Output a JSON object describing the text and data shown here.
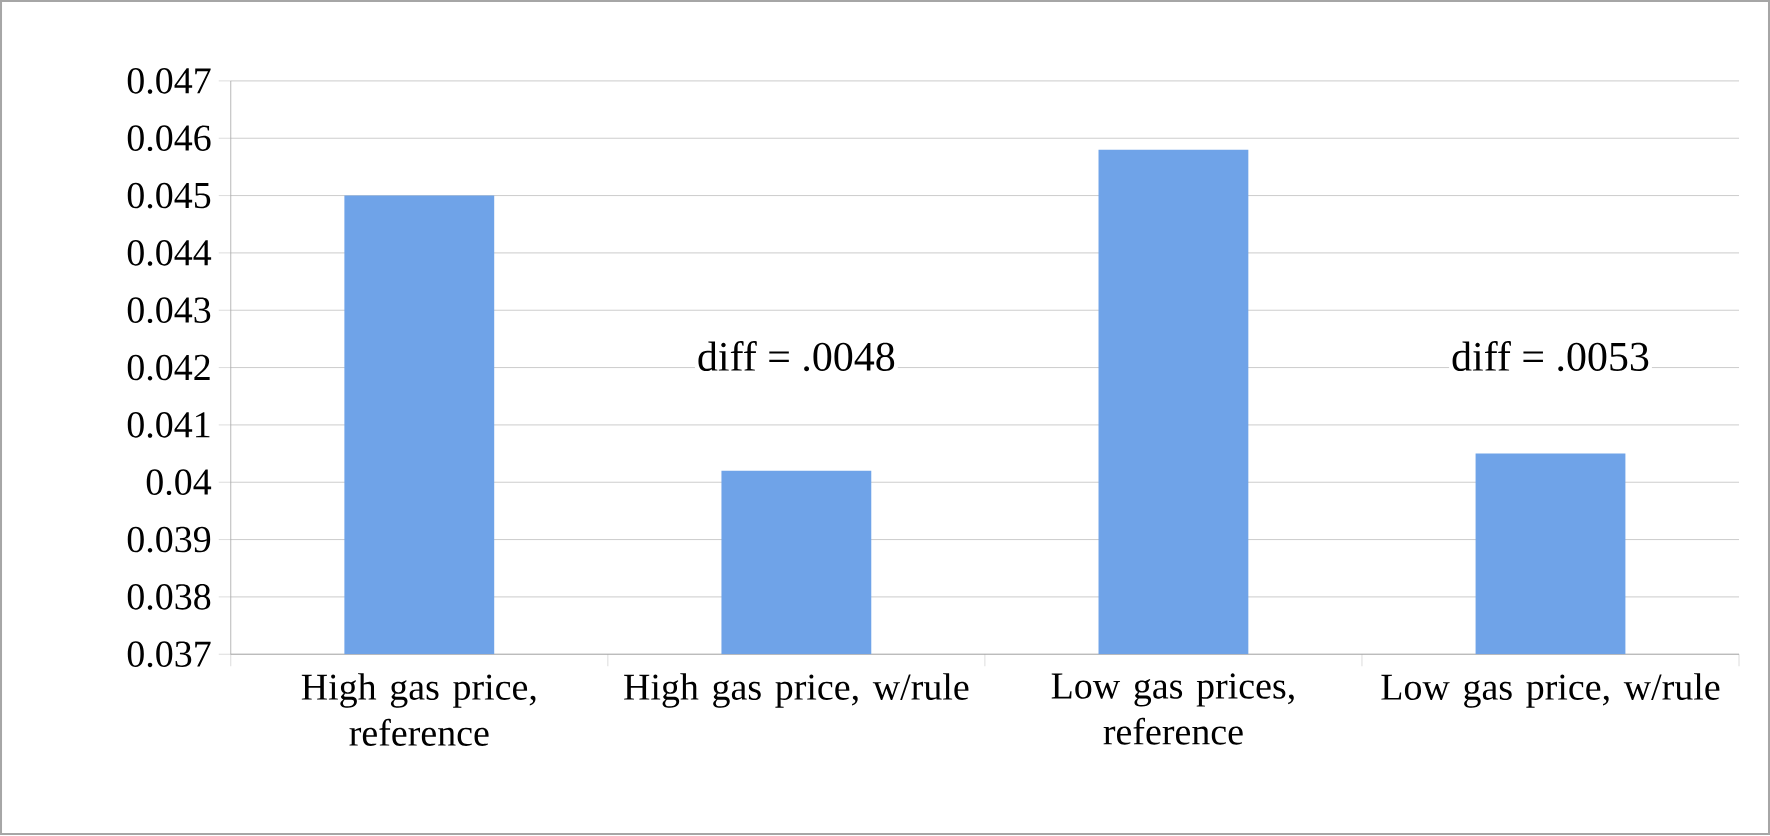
{
  "chart_data": {
    "type": "bar",
    "categories": [
      "High gas price, reference",
      "High gas price, w/rule",
      "Low gas prices, reference",
      "Low gas price, w/rule"
    ],
    "values": [
      0.045,
      0.0402,
      0.0458,
      0.0405
    ],
    "color": "#6fa3e8",
    "ylim": [
      0.037,
      0.047
    ],
    "yticks": [
      0.037,
      0.038,
      0.039,
      0.04,
      0.041,
      0.042,
      0.043,
      0.044,
      0.045,
      0.046,
      0.047
    ],
    "grid": "y",
    "annotations": [
      "diff = .0048",
      "diff = .0053"
    ]
  }
}
